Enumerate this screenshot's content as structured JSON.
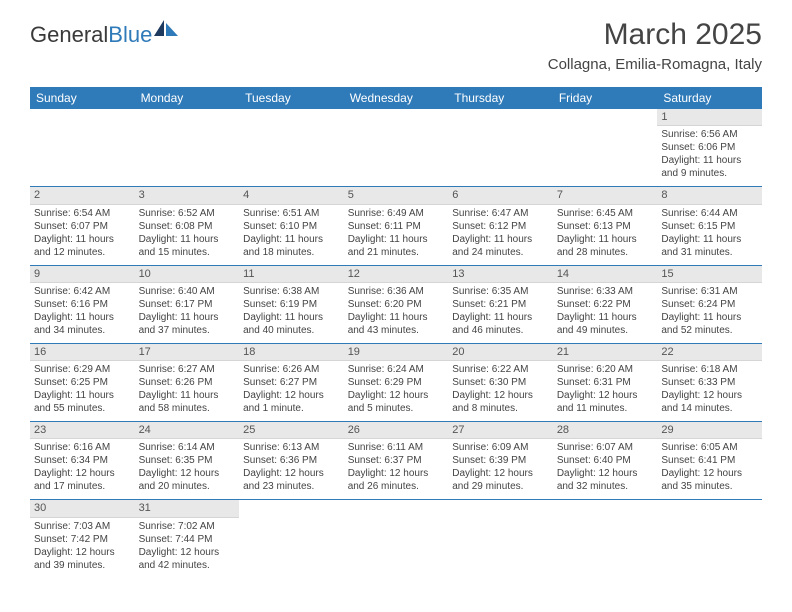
{
  "logo": {
    "general": "General",
    "blue": "Blue"
  },
  "title": "March 2025",
  "location": "Collagna, Emilia-Romagna, Italy",
  "colors": {
    "header_bg": "#2f7ab8",
    "header_text": "#ffffff",
    "daynum_bg": "#e8e8e8",
    "row_divider": "#2f7ab8",
    "text": "#444444"
  },
  "dayHeaders": [
    "Sunday",
    "Monday",
    "Tuesday",
    "Wednesday",
    "Thursday",
    "Friday",
    "Saturday"
  ],
  "days": [
    {
      "n": 1,
      "sr": "6:56 AM",
      "ss": "6:06 PM",
      "dl": "11 hours and 9 minutes."
    },
    {
      "n": 2,
      "sr": "6:54 AM",
      "ss": "6:07 PM",
      "dl": "11 hours and 12 minutes."
    },
    {
      "n": 3,
      "sr": "6:52 AM",
      "ss": "6:08 PM",
      "dl": "11 hours and 15 minutes."
    },
    {
      "n": 4,
      "sr": "6:51 AM",
      "ss": "6:10 PM",
      "dl": "11 hours and 18 minutes."
    },
    {
      "n": 5,
      "sr": "6:49 AM",
      "ss": "6:11 PM",
      "dl": "11 hours and 21 minutes."
    },
    {
      "n": 6,
      "sr": "6:47 AM",
      "ss": "6:12 PM",
      "dl": "11 hours and 24 minutes."
    },
    {
      "n": 7,
      "sr": "6:45 AM",
      "ss": "6:13 PM",
      "dl": "11 hours and 28 minutes."
    },
    {
      "n": 8,
      "sr": "6:44 AM",
      "ss": "6:15 PM",
      "dl": "11 hours and 31 minutes."
    },
    {
      "n": 9,
      "sr": "6:42 AM",
      "ss": "6:16 PM",
      "dl": "11 hours and 34 minutes."
    },
    {
      "n": 10,
      "sr": "6:40 AM",
      "ss": "6:17 PM",
      "dl": "11 hours and 37 minutes."
    },
    {
      "n": 11,
      "sr": "6:38 AM",
      "ss": "6:19 PM",
      "dl": "11 hours and 40 minutes."
    },
    {
      "n": 12,
      "sr": "6:36 AM",
      "ss": "6:20 PM",
      "dl": "11 hours and 43 minutes."
    },
    {
      "n": 13,
      "sr": "6:35 AM",
      "ss": "6:21 PM",
      "dl": "11 hours and 46 minutes."
    },
    {
      "n": 14,
      "sr": "6:33 AM",
      "ss": "6:22 PM",
      "dl": "11 hours and 49 minutes."
    },
    {
      "n": 15,
      "sr": "6:31 AM",
      "ss": "6:24 PM",
      "dl": "11 hours and 52 minutes."
    },
    {
      "n": 16,
      "sr": "6:29 AM",
      "ss": "6:25 PM",
      "dl": "11 hours and 55 minutes."
    },
    {
      "n": 17,
      "sr": "6:27 AM",
      "ss": "6:26 PM",
      "dl": "11 hours and 58 minutes."
    },
    {
      "n": 18,
      "sr": "6:26 AM",
      "ss": "6:27 PM",
      "dl": "12 hours and 1 minute."
    },
    {
      "n": 19,
      "sr": "6:24 AM",
      "ss": "6:29 PM",
      "dl": "12 hours and 5 minutes."
    },
    {
      "n": 20,
      "sr": "6:22 AM",
      "ss": "6:30 PM",
      "dl": "12 hours and 8 minutes."
    },
    {
      "n": 21,
      "sr": "6:20 AM",
      "ss": "6:31 PM",
      "dl": "12 hours and 11 minutes."
    },
    {
      "n": 22,
      "sr": "6:18 AM",
      "ss": "6:33 PM",
      "dl": "12 hours and 14 minutes."
    },
    {
      "n": 23,
      "sr": "6:16 AM",
      "ss": "6:34 PM",
      "dl": "12 hours and 17 minutes."
    },
    {
      "n": 24,
      "sr": "6:14 AM",
      "ss": "6:35 PM",
      "dl": "12 hours and 20 minutes."
    },
    {
      "n": 25,
      "sr": "6:13 AM",
      "ss": "6:36 PM",
      "dl": "12 hours and 23 minutes."
    },
    {
      "n": 26,
      "sr": "6:11 AM",
      "ss": "6:37 PM",
      "dl": "12 hours and 26 minutes."
    },
    {
      "n": 27,
      "sr": "6:09 AM",
      "ss": "6:39 PM",
      "dl": "12 hours and 29 minutes."
    },
    {
      "n": 28,
      "sr": "6:07 AM",
      "ss": "6:40 PM",
      "dl": "12 hours and 32 minutes."
    },
    {
      "n": 29,
      "sr": "6:05 AM",
      "ss": "6:41 PM",
      "dl": "12 hours and 35 minutes."
    },
    {
      "n": 30,
      "sr": "7:03 AM",
      "ss": "7:42 PM",
      "dl": "12 hours and 39 minutes."
    },
    {
      "n": 31,
      "sr": "7:02 AM",
      "ss": "7:44 PM",
      "dl": "12 hours and 42 minutes."
    }
  ],
  "labels": {
    "sunrise": "Sunrise:",
    "sunset": "Sunset:",
    "daylight": "Daylight:"
  },
  "firstDayColumn": 6
}
